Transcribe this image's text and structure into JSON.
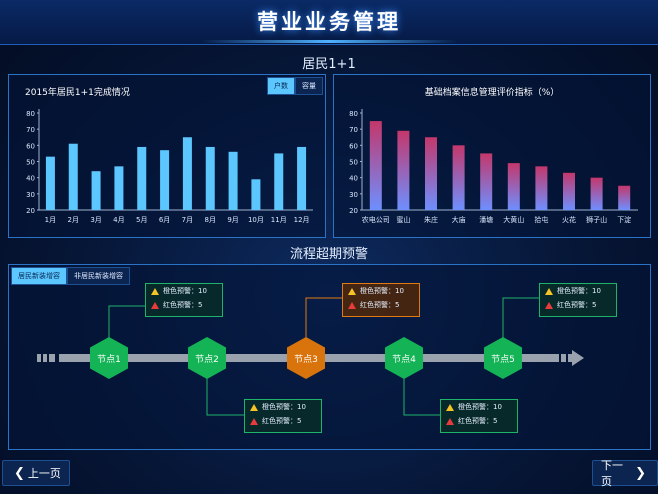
{
  "header": {
    "title": "营业业务管理"
  },
  "section1": {
    "title": "居民1+1"
  },
  "left_chart": {
    "title": "2015年居民1+1完成情况",
    "tabs": [
      {
        "label": "户数",
        "active": true
      },
      {
        "label": "容量",
        "active": false
      }
    ]
  },
  "right_chart": {
    "title": "基础档案信息管理评价指标（%）"
  },
  "section2": {
    "title": "流程超期预警"
  },
  "flow_tabs": [
    {
      "label": "居民新装增容",
      "active": true
    },
    {
      "label": "非居民新装增容",
      "active": false
    }
  ],
  "nodes": [
    {
      "label": "节点1",
      "status": "green"
    },
    {
      "label": "节点2",
      "status": "green"
    },
    {
      "label": "节点3",
      "status": "orange"
    },
    {
      "label": "节点4",
      "status": "green"
    },
    {
      "label": "节点5",
      "status": "green"
    }
  ],
  "alerts": [
    {
      "node": 1,
      "position": "top",
      "orange_text": "橙色预警：10",
      "red_text": "红色预警：5",
      "style": "green"
    },
    {
      "node": 2,
      "position": "bottom",
      "orange_text": "橙色预警：10",
      "red_text": "红色预警：5",
      "style": "green"
    },
    {
      "node": 3,
      "position": "top",
      "orange_text": "橙色预警：10",
      "red_text": "红色预警：5",
      "style": "orange"
    },
    {
      "node": 4,
      "position": "bottom",
      "orange_text": "橙色预警：10",
      "red_text": "红色预警：5",
      "style": "green"
    },
    {
      "node": 5,
      "position": "top",
      "orange_text": "橙色预警：10",
      "red_text": "红色预警：5",
      "style": "green"
    }
  ],
  "pagination": {
    "prev_label": "上一页",
    "next_label": "下一页"
  },
  "colors": {
    "bar_blue": "#5cc6ff",
    "node_green": "#13b356",
    "node_orange": "#d9740c",
    "grad_top": "#c4376b",
    "grad_bottom": "#6e8fff"
  },
  "chart_data": [
    {
      "type": "bar",
      "title": "2015年居民1+1完成情况",
      "categories": [
        "1月",
        "2月",
        "3月",
        "4月",
        "5月",
        "6月",
        "7月",
        "8月",
        "9月",
        "10月",
        "11月",
        "12月"
      ],
      "values": [
        53,
        61,
        44,
        47,
        59,
        57,
        65,
        59,
        56,
        39,
        55,
        59
      ],
      "ylim": [
        20,
        80
      ],
      "yticks": [
        20,
        30,
        40,
        50,
        60,
        70,
        80
      ]
    },
    {
      "type": "bar",
      "title": "基础档案信息管理评价指标（%）",
      "categories": [
        "农电公司",
        "蜜山",
        "朱庄",
        "大庙",
        "潘塘",
        "大黄山",
        "拾屯",
        "火花",
        "狮子山",
        "下淀"
      ],
      "values": [
        75,
        69,
        65,
        60,
        55,
        49,
        47,
        43,
        40,
        35
      ],
      "ylim": [
        20,
        80
      ],
      "yticks": [
        20,
        30,
        40,
        50,
        60,
        70,
        80
      ]
    }
  ]
}
